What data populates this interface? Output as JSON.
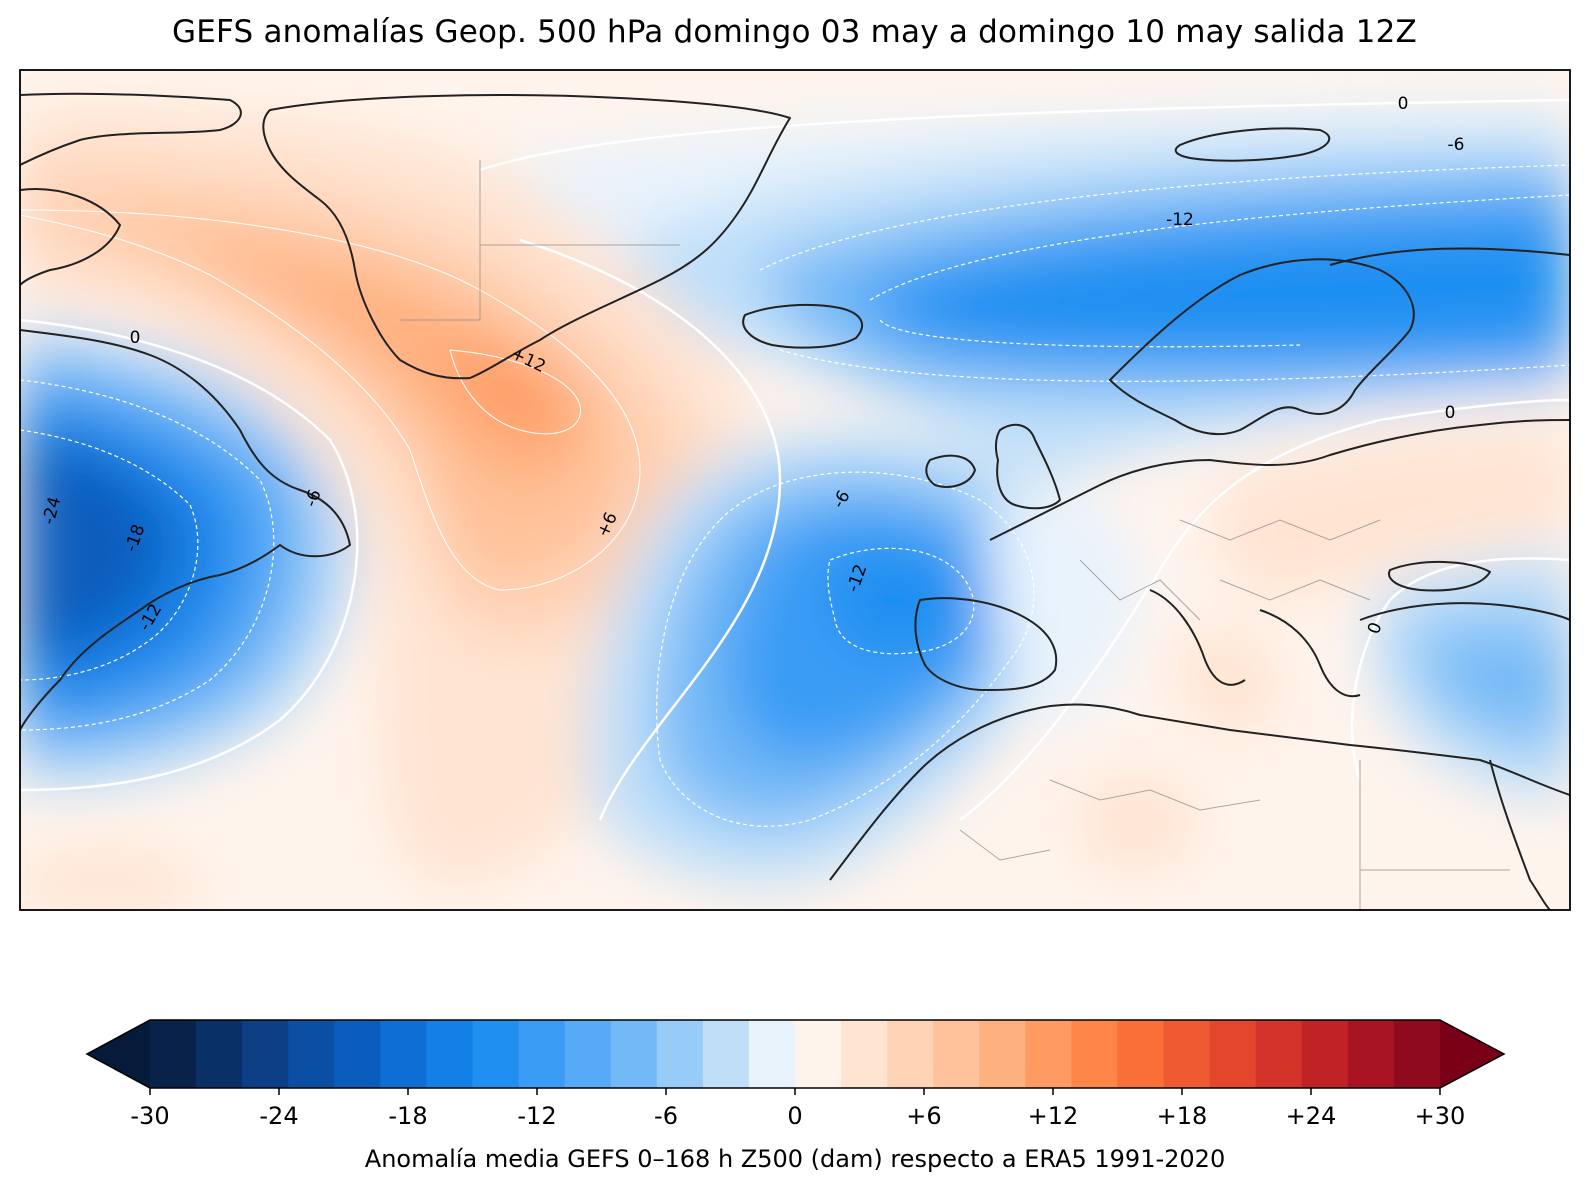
{
  "title": "GEFS anomalías Geop. 500 hPa domingo 03 may a domingo 10 may salida 12Z",
  "colorbar": {
    "label": "Anomalía media GEFS 0–168 h Z500 (dam) respecto a ERA5 1991-2020",
    "ticks": [
      "-30",
      "-24",
      "-18",
      "-12",
      "-6",
      "0",
      "+6",
      "+12",
      "+18",
      "+24",
      "+30"
    ],
    "levels_min": -30,
    "levels_max": 30,
    "level_step": 2,
    "colors": [
      "#08224a",
      "#0a3068",
      "#0c3f86",
      "#0b4fa5",
      "#0b5dbd",
      "#0e6ed3",
      "#1280e6",
      "#1f8ff2",
      "#3a9cf5",
      "#56aaf6",
      "#74b9f7",
      "#97cbf8",
      "#bfdff9",
      "#e8f3fc",
      "#fff4ec",
      "#ffe4d2",
      "#ffd3b6",
      "#ffc29a",
      "#ffb07f",
      "#ff9b62",
      "#ff8548",
      "#fa6e38",
      "#f05a32",
      "#e3462d",
      "#d33329",
      "#c02226",
      "#a81422",
      "#8e0a1c"
    ],
    "under_color": "#061a3a",
    "over_color": "#7a0018"
  },
  "contour_labels": [
    "0",
    "-6",
    "-12",
    "0",
    "-24",
    "-18",
    "-12",
    "-6",
    "+12",
    "+6",
    "-6",
    "-12",
    "0",
    "0"
  ],
  "colors": {
    "land_outline": "#222222",
    "border": "#888888",
    "zero_line": "#ffffff"
  }
}
